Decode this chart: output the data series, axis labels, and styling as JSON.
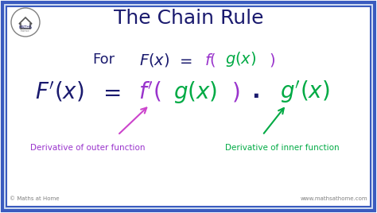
{
  "title": "The Chain Rule",
  "title_color": "#1a1a6e",
  "title_fontsize": 18,
  "bg_color": "#ffffff",
  "border_color": "#3a5bbf",
  "border_lw": 2.5,
  "navy": "#1a1a6e",
  "purple": "#9933cc",
  "green": "#00aa44",
  "arrow_purple_color": "#cc44cc",
  "arrow_green_color": "#00aa44",
  "label_outer": "Derivative of outer function",
  "label_inner": "Derivative of inner function",
  "label_fontsize": 7.5,
  "watermark_left": "© Maths at Home",
  "watermark_right": "www.mathsathome.com"
}
